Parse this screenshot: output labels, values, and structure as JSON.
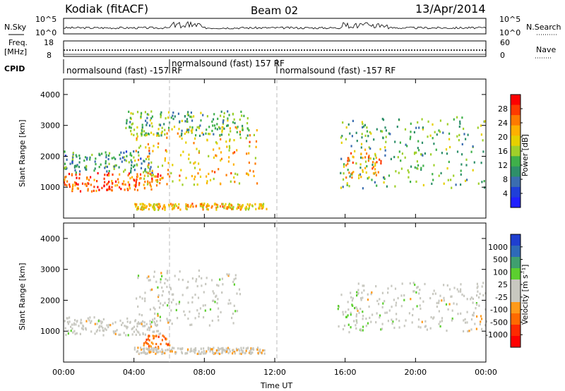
{
  "header": {
    "station": "Kodiak (fitACF)",
    "beam": "Beam 02",
    "date": "13/Apr/2014"
  },
  "top_panels": {
    "nsky_label": "N.Sky",
    "nsky_ticks": [
      "10^5",
      "10^0"
    ],
    "nsearch_label": "N.Search",
    "nsearch_ticks": [
      "10^5",
      "10^0"
    ],
    "freq_label": "Freq.",
    "freq_unit": "[MHz]",
    "freq_ticks": [
      "18",
      "8"
    ],
    "nave_label": "Nave",
    "nave_ticks": [
      "60",
      "0"
    ],
    "cpid_label": "CPID",
    "cpid_segments": [
      "normalsound (fast) -157 RF",
      "normalsound (fast) 157 RF",
      "normalsound (fast) -157 RF"
    ]
  },
  "colorbars": {
    "power": {
      "label": "Power [dB]",
      "ticks": [
        "28",
        "24",
        "20",
        "16",
        "12",
        "8",
        "4"
      ],
      "colors": [
        "#ff0000",
        "#ff3a00",
        "#ff7a00",
        "#ffb000",
        "#e6d000",
        "#9fd02a",
        "#3fb04a",
        "#2e8f6a",
        "#3a6db0",
        "#1f3fd8",
        "#2020ff"
      ]
    },
    "velocity": {
      "label": "Velocity [m s⁻¹]",
      "ticks": [
        "1000",
        "500",
        "100",
        "25",
        "-25",
        "-100",
        "-500",
        "-1000"
      ],
      "colors": [
        "#1f3fd0",
        "#2e6ab8",
        "#3f9f6f",
        "#5ccf2f",
        "#c8c8c0",
        "#c8c8c0",
        "#ff9a1a",
        "#ff6a00",
        "#ff2a00",
        "#ff0000"
      ]
    }
  },
  "axes": {
    "ylabel": "Slant Range [km]",
    "yticks": [
      "4000",
      "3000",
      "2000",
      "1000"
    ],
    "xlabel": "Time UT",
    "xticks": [
      "00:00",
      "04:00",
      "08:00",
      "12:00",
      "16:00",
      "20:00",
      "00:00"
    ]
  },
  "chart_data": [
    {
      "type": "heatmap",
      "title": "",
      "quantity": "Power [dB]",
      "xlabel": "Time UT",
      "ylabel": "Slant Range [km]",
      "xlim": [
        0,
        24
      ],
      "ylim": [
        0,
        4500
      ],
      "color_range": [
        0,
        30
      ],
      "bands": [
        {
          "t_start": 0.0,
          "t_end": 5.5,
          "r_low": 900,
          "r_high": 1500,
          "power": 26
        },
        {
          "t_start": 0.0,
          "t_end": 5.0,
          "r_low": 1500,
          "r_high": 2200,
          "power": 10
        },
        {
          "t_start": 4.0,
          "t_end": 11.0,
          "r_low": 1100,
          "r_high": 3000,
          "power": 20
        },
        {
          "t_start": 3.5,
          "t_end": 10.5,
          "r_low": 2700,
          "r_high": 3500,
          "power": 12
        },
        {
          "t_start": 4.0,
          "t_end": 11.5,
          "r_low": 300,
          "r_high": 500,
          "power": 20
        },
        {
          "t_start": 15.5,
          "t_end": 24.0,
          "r_low": 1000,
          "r_high": 3300,
          "power": 12
        },
        {
          "t_start": 16.0,
          "t_end": 18.0,
          "r_low": 1300,
          "r_high": 2300,
          "power": 22
        }
      ]
    },
    {
      "type": "heatmap",
      "title": "",
      "quantity": "Velocity [m s⁻¹]",
      "xlabel": "Time UT",
      "ylabel": "Slant Range [km]",
      "xlim": [
        0,
        24
      ],
      "ylim": [
        0,
        4500
      ],
      "color_range": [
        -1000,
        1000
      ],
      "bands": [
        {
          "t_start": 0.0,
          "t_end": 5.5,
          "r_low": 900,
          "r_high": 1500,
          "velocity": 0
        },
        {
          "t_start": 4.0,
          "t_end": 10.0,
          "r_low": 1200,
          "r_high": 3000,
          "velocity": 0
        },
        {
          "t_start": 4.5,
          "t_end": 6.0,
          "r_low": 500,
          "r_high": 900,
          "velocity": -500
        },
        {
          "t_start": 4.0,
          "t_end": 11.5,
          "r_low": 300,
          "r_high": 500,
          "velocity": -100
        },
        {
          "t_start": 15.5,
          "t_end": 17.0,
          "r_low": 1000,
          "r_high": 2300,
          "velocity": 100
        },
        {
          "t_start": 16.5,
          "t_end": 24.0,
          "r_low": 1000,
          "r_high": 2600,
          "velocity": 0
        }
      ]
    }
  ]
}
